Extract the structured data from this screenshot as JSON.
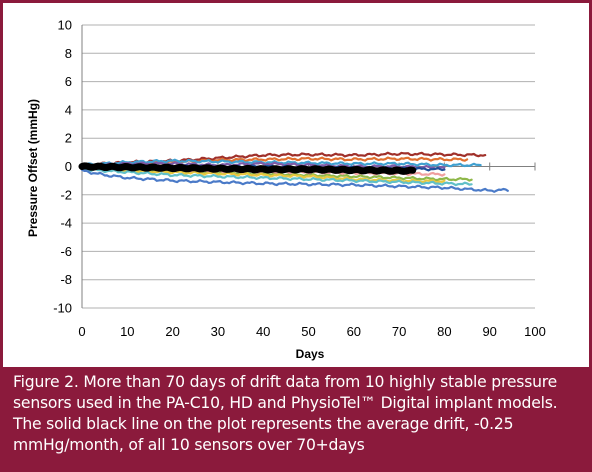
{
  "caption": "Figure 2.  More than 70 days of drift data from 10 highly stable pressure sensors used in the PA-C10, HD and PhysioTel™ Digital implant models.  The solid black line on the plot represents the average drift, -0.25 mmHg/month, of all 10 sensors over 70+days",
  "chart_data": {
    "type": "line",
    "title": "",
    "xlabel": "Days",
    "ylabel": "Pressure Offset (mmHg)",
    "xlim": [
      0,
      100
    ],
    "ylim": [
      -10,
      10
    ],
    "x_ticks": [
      "0",
      "10",
      "20",
      "30",
      "40",
      "50",
      "60",
      "70",
      "80",
      "90",
      "100"
    ],
    "y_ticks": [
      "10",
      "8",
      "6",
      "4",
      "2",
      "0",
      "-2",
      "-4",
      "-6",
      "-8",
      "-10"
    ],
    "grid": "horizontal",
    "legend": "none",
    "series": [
      {
        "color": "#a0302a",
        "width": 2.2,
        "points": [
          [
            0,
            0.1
          ],
          [
            10,
            0.3
          ],
          [
            20,
            0.4
          ],
          [
            30,
            0.6
          ],
          [
            40,
            0.8
          ],
          [
            50,
            0.85
          ],
          [
            60,
            0.8
          ],
          [
            70,
            0.9
          ],
          [
            80,
            0.85
          ],
          [
            89,
            0.8
          ]
        ]
      },
      {
        "color": "#e07030",
        "width": 2.2,
        "points": [
          [
            0,
            0.0
          ],
          [
            10,
            0.2
          ],
          [
            20,
            0.3
          ],
          [
            30,
            0.45
          ],
          [
            40,
            0.5
          ],
          [
            50,
            0.55
          ],
          [
            60,
            0.5
          ],
          [
            70,
            0.55
          ],
          [
            80,
            0.5
          ],
          [
            85,
            0.5
          ]
        ]
      },
      {
        "color": "#40a0d0",
        "width": 2.2,
        "points": [
          [
            0,
            0.1
          ],
          [
            10,
            0.3
          ],
          [
            20,
            0.4
          ],
          [
            30,
            0.35
          ],
          [
            40,
            0.3
          ],
          [
            50,
            0.25
          ],
          [
            60,
            0.2
          ],
          [
            70,
            0.2
          ],
          [
            80,
            0.1
          ],
          [
            88,
            0.1
          ]
        ]
      },
      {
        "color": "#7f5ba8",
        "width": 2.2,
        "points": [
          [
            0,
            0.0
          ],
          [
            10,
            0.2
          ],
          [
            20,
            0.2
          ],
          [
            30,
            0.1
          ],
          [
            40,
            0.2
          ],
          [
            50,
            0.1
          ],
          [
            60,
            0.0
          ],
          [
            70,
            0.0
          ],
          [
            80,
            -0.1
          ]
        ]
      },
      {
        "color": "#8fb84a",
        "width": 2.2,
        "points": [
          [
            0,
            0.0
          ],
          [
            10,
            -0.2
          ],
          [
            20,
            -0.3
          ],
          [
            30,
            -0.4
          ],
          [
            40,
            -0.5
          ],
          [
            50,
            -0.6
          ],
          [
            60,
            -0.7
          ],
          [
            70,
            -0.8
          ],
          [
            80,
            -0.9
          ],
          [
            86,
            -0.9
          ]
        ]
      },
      {
        "color": "#e8c840",
        "width": 2.2,
        "points": [
          [
            0,
            -0.1
          ],
          [
            10,
            -0.3
          ],
          [
            20,
            -0.4
          ],
          [
            30,
            -0.5
          ],
          [
            40,
            -0.6
          ],
          [
            50,
            -0.7
          ],
          [
            60,
            -0.9
          ],
          [
            70,
            -1.0
          ],
          [
            80,
            -1.05
          ]
        ]
      },
      {
        "color": "#60c0c8",
        "width": 2.2,
        "points": [
          [
            0,
            -0.2
          ],
          [
            10,
            -0.4
          ],
          [
            20,
            -0.6
          ],
          [
            30,
            -0.7
          ],
          [
            40,
            -0.8
          ],
          [
            50,
            -0.9
          ],
          [
            60,
            -1.0
          ],
          [
            70,
            -1.1
          ],
          [
            80,
            -1.2
          ],
          [
            86,
            -1.25
          ]
        ]
      },
      {
        "color": "#f0a0a0",
        "width": 2.2,
        "points": [
          [
            0,
            0.0
          ],
          [
            10,
            -0.1
          ],
          [
            20,
            -0.2
          ],
          [
            30,
            -0.3
          ],
          [
            40,
            -0.35
          ],
          [
            50,
            -0.4
          ],
          [
            60,
            -0.45
          ],
          [
            70,
            -0.5
          ],
          [
            80,
            -0.55
          ]
        ]
      },
      {
        "color": "#4a7ac8",
        "width": 2.2,
        "points": [
          [
            0,
            -0.3
          ],
          [
            5,
            -0.6
          ],
          [
            10,
            -0.8
          ],
          [
            20,
            -1.0
          ],
          [
            30,
            -1.1
          ],
          [
            40,
            -1.2
          ],
          [
            50,
            -1.25
          ],
          [
            60,
            -1.3
          ],
          [
            70,
            -1.4
          ],
          [
            80,
            -1.5
          ],
          [
            90,
            -1.7
          ],
          [
            94,
            -1.65
          ]
        ]
      },
      {
        "color": "#1f4f9a",
        "width": 2.2,
        "points": [
          [
            0,
            0.0
          ],
          [
            10,
            0.05
          ],
          [
            20,
            0.0
          ],
          [
            30,
            -0.05
          ],
          [
            40,
            0.0
          ],
          [
            50,
            -0.1
          ],
          [
            60,
            -0.1
          ],
          [
            70,
            -0.15
          ],
          [
            80,
            -0.2
          ]
        ]
      },
      {
        "color": "#000000",
        "width": 7,
        "points": [
          [
            0,
            0.0
          ],
          [
            10,
            -0.05
          ],
          [
            20,
            -0.1
          ],
          [
            30,
            -0.15
          ],
          [
            40,
            -0.2
          ],
          [
            50,
            -0.2
          ],
          [
            60,
            -0.25
          ],
          [
            70,
            -0.3
          ],
          [
            73,
            -0.3
          ]
        ]
      }
    ]
  }
}
